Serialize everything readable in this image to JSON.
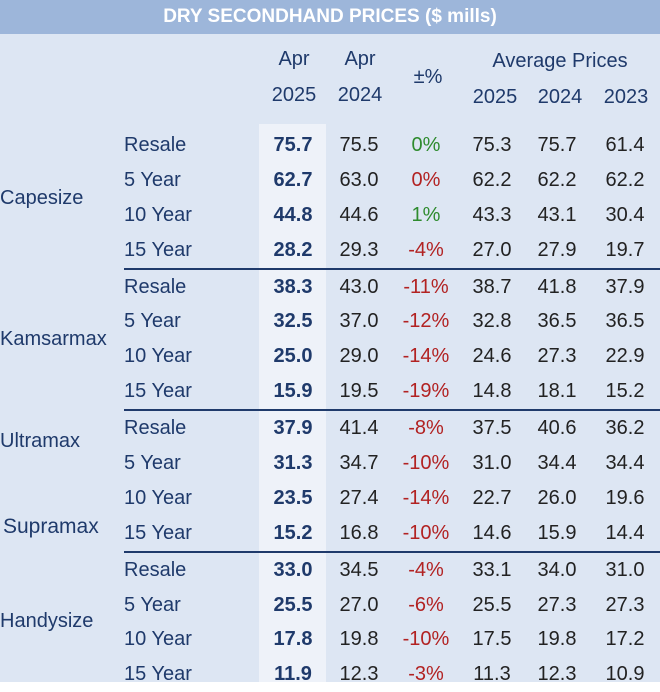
{
  "chart_data": {
    "type": "table",
    "title": "DRY SECONDHAND PRICES ($ mills)",
    "columns": {
      "apr2025": [
        "Apr",
        "2025"
      ],
      "apr2024": [
        "Apr",
        "2024"
      ],
      "change": "±%",
      "average": "Average Prices",
      "avg_years": [
        "2025",
        "2024",
        "2023"
      ]
    },
    "groups": [
      {
        "name": "Capesize",
        "rows": [
          {
            "age": "Resale",
            "apr2025": "75.7",
            "apr2024": "75.5",
            "change": "0%",
            "avg2025": "75.3",
            "avg2024": "75.7",
            "avg2023": "61.4"
          },
          {
            "age": "5 Year",
            "apr2025": "62.7",
            "apr2024": "63.0",
            "change": "0%",
            "avg2025": "62.2",
            "avg2024": "62.2",
            "avg2023": "62.2"
          },
          {
            "age": "10 Year",
            "apr2025": "44.8",
            "apr2024": "44.6",
            "change": "1%",
            "avg2025": "43.3",
            "avg2024": "43.1",
            "avg2023": "30.4"
          },
          {
            "age": "15 Year",
            "apr2025": "28.2",
            "apr2024": "29.3",
            "change": "-4%",
            "avg2025": "27.0",
            "avg2024": "27.9",
            "avg2023": "19.7"
          }
        ]
      },
      {
        "name": "Kamsarmax",
        "rows": [
          {
            "age": "Resale",
            "apr2025": "38.3",
            "apr2024": "43.0",
            "change": "-11%",
            "avg2025": "38.7",
            "avg2024": "41.8",
            "avg2023": "37.9"
          },
          {
            "age": "5 Year",
            "apr2025": "32.5",
            "apr2024": "37.0",
            "change": "-12%",
            "avg2025": "32.8",
            "avg2024": "36.5",
            "avg2023": "36.5"
          },
          {
            "age": "10 Year",
            "apr2025": "25.0",
            "apr2024": "29.0",
            "change": "-14%",
            "avg2025": "24.6",
            "avg2024": "27.3",
            "avg2023": "22.9"
          },
          {
            "age": "15 Year",
            "apr2025": "15.9",
            "apr2024": "19.5",
            "change": "-19%",
            "avg2025": "14.8",
            "avg2024": "18.1",
            "avg2023": "15.2"
          }
        ]
      },
      {
        "name": "Ultramax",
        "name2": "Supramax",
        "rows": [
          {
            "age": "Resale",
            "apr2025": "37.9",
            "apr2024": "41.4",
            "change": "-8%",
            "avg2025": "37.5",
            "avg2024": "40.6",
            "avg2023": "36.2"
          },
          {
            "age": "5 Year",
            "apr2025": "31.3",
            "apr2024": "34.7",
            "change": "-10%",
            "avg2025": "31.0",
            "avg2024": "34.4",
            "avg2023": "34.4"
          },
          {
            "age": "10 Year",
            "apr2025": "23.5",
            "apr2024": "27.4",
            "change": "-14%",
            "avg2025": "22.7",
            "avg2024": "26.0",
            "avg2023": "19.6"
          },
          {
            "age": "15 Year",
            "apr2025": "15.2",
            "apr2024": "16.8",
            "change": "-10%",
            "avg2025": "14.6",
            "avg2024": "15.9",
            "avg2023": "14.4"
          }
        ]
      },
      {
        "name": "Handysize",
        "rows": [
          {
            "age": "Resale",
            "apr2025": "33.0",
            "apr2024": "34.5",
            "change": "-4%",
            "avg2025": "33.1",
            "avg2024": "34.0",
            "avg2023": "31.0"
          },
          {
            "age": "5 Year",
            "apr2025": "25.5",
            "apr2024": "27.0",
            "change": "-6%",
            "avg2025": "25.5",
            "avg2024": "27.3",
            "avg2023": "27.3"
          },
          {
            "age": "10 Year",
            "apr2025": "17.8",
            "apr2024": "19.8",
            "change": "-10%",
            "avg2025": "17.5",
            "avg2024": "19.8",
            "avg2023": "17.2"
          },
          {
            "age": "15 Year",
            "apr2025": "11.9",
            "apr2024": "12.3",
            "change": "-3%",
            "avg2025": "11.3",
            "avg2024": "12.3",
            "avg2023": "10.9"
          }
        ]
      }
    ],
    "change_colors": {
      "positive": "#2e8b2e",
      "negative": "#b22222",
      "zero_capesize_resale": "#2e8b2e",
      "zero_capesize_5y": "#b22222"
    },
    "accent": "#1f3a6b",
    "header_bg": "#9db6da",
    "panel_bg": "#dde6f3"
  }
}
